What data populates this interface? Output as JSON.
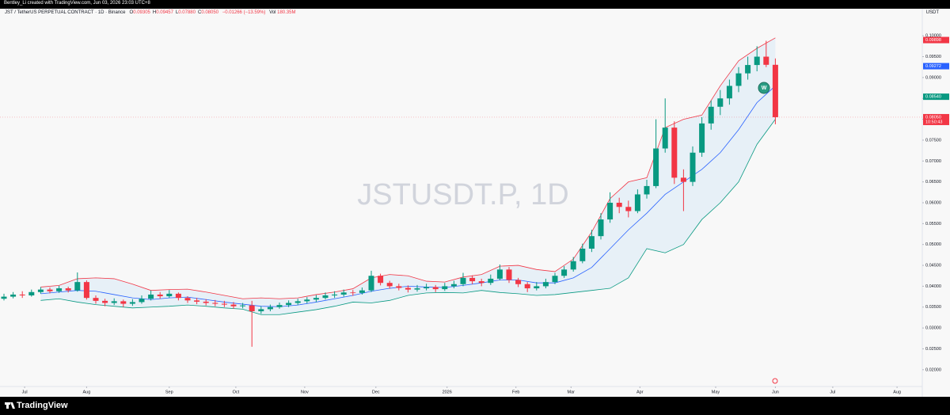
{
  "header": {
    "credit": "Bentley_Li created with TradingView.com, Jun 03, 2026 23:03 UTC+8"
  },
  "footer": {
    "brand": "TradingView"
  },
  "chart_data": {
    "type": "candlestick",
    "watermark": "JSTUSDT.P, 1D",
    "symbol": "JST / TetherUS PERPETUAL CONTRACT · 1D · Binance",
    "ohlc": [
      {
        "key": "O",
        "value": "0.09305"
      },
      {
        "key": "H",
        "value": "0.09457"
      },
      {
        "key": "L",
        "value": "0.07880"
      },
      {
        "key": "C",
        "value": "0.08050"
      }
    ],
    "change": "−0.01266 (−13.59%)",
    "volume_key": "Vol",
    "volume": "180.35M",
    "currency": "USDT",
    "badge": "W",
    "up_color": "#089981",
    "down_color": "#f23645",
    "xlim": [
      0,
      400
    ],
    "xticks": [
      {
        "value": 9,
        "label": "Jul"
      },
      {
        "value": 36,
        "label": "Aug"
      },
      {
        "value": 72,
        "label": "Sep"
      },
      {
        "value": 101,
        "label": "Oct"
      },
      {
        "value": 131,
        "label": "Nov"
      },
      {
        "value": 162,
        "label": "Dec"
      },
      {
        "value": 193,
        "label": "2026"
      },
      {
        "value": 223,
        "label": "Feb"
      },
      {
        "value": 247,
        "label": "Mar"
      },
      {
        "value": 277,
        "label": "Apr"
      },
      {
        "value": 310,
        "label": "May"
      },
      {
        "value": 336,
        "label": "Jun"
      },
      {
        "value": 361,
        "label": "Jul"
      },
      {
        "value": 389,
        "label": "Aug"
      }
    ],
    "ylim": [
      0.0156,
      0.1044
    ],
    "yticks": [
      {
        "value": 0.02,
        "label": "0.02000"
      },
      {
        "value": 0.025,
        "label": "0.02500"
      },
      {
        "value": 0.03,
        "label": "0.03000"
      },
      {
        "value": 0.035,
        "label": "0.03500"
      },
      {
        "value": 0.04,
        "label": "0.04000"
      },
      {
        "value": 0.045,
        "label": "0.04500"
      },
      {
        "value": 0.05,
        "label": "0.05000"
      },
      {
        "value": 0.055,
        "label": "0.05500"
      },
      {
        "value": 0.06,
        "label": "0.06000"
      },
      {
        "value": 0.065,
        "label": "0.06500"
      },
      {
        "value": 0.07,
        "label": "0.07000"
      },
      {
        "value": 0.075,
        "label": "0.07500"
      },
      {
        "value": 0.08,
        "label": "0.08000"
      },
      {
        "value": 0.085,
        "label": "0.08500"
      },
      {
        "value": 0.09,
        "label": "0.09000"
      },
      {
        "value": 0.095,
        "label": "0.09500"
      },
      {
        "value": 0.1,
        "label": "0.10000"
      }
    ],
    "x": [
      0,
      4,
      8,
      12,
      16,
      20,
      24,
      28,
      32,
      36,
      40,
      44,
      48,
      52,
      56,
      60,
      64,
      68,
      72,
      76,
      80,
      84,
      88,
      92,
      96,
      100,
      104,
      108,
      112,
      116,
      120,
      124,
      128,
      132,
      136,
      140,
      144,
      148,
      152,
      156,
      160,
      164,
      168,
      172,
      176,
      180,
      184,
      188,
      192,
      196,
      200,
      204,
      208,
      212,
      216,
      220,
      224,
      228,
      232,
      236,
      240,
      244,
      248,
      252,
      256,
      260,
      264,
      268,
      272,
      276,
      280,
      284,
      288,
      292,
      296,
      300,
      304,
      308,
      312,
      316,
      320,
      324,
      328,
      332,
      336
    ],
    "candles": [
      [
        0.037,
        0.0382,
        0.0366,
        0.0375
      ],
      [
        0.0375,
        0.0386,
        0.0371,
        0.038
      ],
      [
        0.038,
        0.0388,
        0.0372,
        0.0378
      ],
      [
        0.0378,
        0.0392,
        0.0375,
        0.0386
      ],
      [
        0.0386,
        0.0398,
        0.0382,
        0.0392
      ],
      [
        0.0392,
        0.0397,
        0.0383,
        0.0388
      ],
      [
        0.0388,
        0.0401,
        0.0384,
        0.0395
      ],
      [
        0.0395,
        0.0399,
        0.0385,
        0.039
      ],
      [
        0.039,
        0.0433,
        0.0387,
        0.041
      ],
      [
        0.041,
        0.0414,
        0.0368,
        0.0372
      ],
      [
        0.0372,
        0.0378,
        0.0358,
        0.0365
      ],
      [
        0.0365,
        0.037,
        0.0352,
        0.036
      ],
      [
        0.036,
        0.0371,
        0.0355,
        0.0364
      ],
      [
        0.0364,
        0.0368,
        0.035,
        0.0358
      ],
      [
        0.0358,
        0.0369,
        0.0353,
        0.0362
      ],
      [
        0.0362,
        0.0378,
        0.0358,
        0.037
      ],
      [
        0.037,
        0.039,
        0.0366,
        0.038
      ],
      [
        0.038,
        0.0386,
        0.037,
        0.0376
      ],
      [
        0.0376,
        0.0391,
        0.0372,
        0.0382
      ],
      [
        0.0382,
        0.0385,
        0.0366,
        0.0372
      ],
      [
        0.0372,
        0.0376,
        0.036,
        0.0366
      ],
      [
        0.0366,
        0.0372,
        0.0357,
        0.0363
      ],
      [
        0.0363,
        0.0369,
        0.0354,
        0.036
      ],
      [
        0.036,
        0.0367,
        0.0352,
        0.0358
      ],
      [
        0.0358,
        0.0365,
        0.035,
        0.0356
      ],
      [
        0.0356,
        0.0362,
        0.0346,
        0.0352
      ],
      [
        0.0352,
        0.036,
        0.0347,
        0.0354
      ],
      [
        0.0354,
        0.0365,
        0.0255,
        0.034
      ],
      [
        0.034,
        0.0352,
        0.0334,
        0.0345
      ],
      [
        0.0345,
        0.0356,
        0.034,
        0.035
      ],
      [
        0.035,
        0.0361,
        0.0346,
        0.0355
      ],
      [
        0.0355,
        0.0366,
        0.035,
        0.036
      ],
      [
        0.036,
        0.037,
        0.0355,
        0.0364
      ],
      [
        0.0364,
        0.0374,
        0.0359,
        0.0368
      ],
      [
        0.0368,
        0.0379,
        0.0362,
        0.0372
      ],
      [
        0.0372,
        0.0385,
        0.0368,
        0.0378
      ],
      [
        0.0378,
        0.0388,
        0.0372,
        0.038
      ],
      [
        0.038,
        0.0392,
        0.0375,
        0.0385
      ],
      [
        0.0385,
        0.0391,
        0.0377,
        0.0384
      ],
      [
        0.0384,
        0.0397,
        0.038,
        0.039
      ],
      [
        0.039,
        0.0437,
        0.0386,
        0.0425
      ],
      [
        0.0425,
        0.043,
        0.0402,
        0.0408
      ],
      [
        0.0408,
        0.0413,
        0.0394,
        0.04
      ],
      [
        0.04,
        0.0406,
        0.039,
        0.0396
      ],
      [
        0.0396,
        0.0402,
        0.0385,
        0.0392
      ],
      [
        0.0392,
        0.0403,
        0.0387,
        0.0395
      ],
      [
        0.0395,
        0.0406,
        0.039,
        0.0398
      ],
      [
        0.0398,
        0.0403,
        0.0386,
        0.0393
      ],
      [
        0.0393,
        0.0408,
        0.0389,
        0.04
      ],
      [
        0.04,
        0.0413,
        0.0395,
        0.0405
      ],
      [
        0.0405,
        0.0432,
        0.04,
        0.042
      ],
      [
        0.042,
        0.0426,
        0.0405,
        0.0412
      ],
      [
        0.0412,
        0.0418,
        0.04,
        0.0408
      ],
      [
        0.0408,
        0.0428,
        0.0403,
        0.0418
      ],
      [
        0.0418,
        0.0452,
        0.0414,
        0.044
      ],
      [
        0.044,
        0.0446,
        0.0408,
        0.0415
      ],
      [
        0.0415,
        0.042,
        0.0398,
        0.0405
      ],
      [
        0.0405,
        0.041,
        0.0386,
        0.0395
      ],
      [
        0.0395,
        0.041,
        0.039,
        0.04
      ],
      [
        0.04,
        0.0418,
        0.0395,
        0.041
      ],
      [
        0.041,
        0.0432,
        0.0405,
        0.0425
      ],
      [
        0.0425,
        0.0448,
        0.042,
        0.044
      ],
      [
        0.044,
        0.047,
        0.0435,
        0.046
      ],
      [
        0.046,
        0.0502,
        0.0455,
        0.049
      ],
      [
        0.049,
        0.0535,
        0.0482,
        0.052
      ],
      [
        0.052,
        0.0575,
        0.0512,
        0.056
      ],
      [
        0.056,
        0.0625,
        0.0552,
        0.06
      ],
      [
        0.06,
        0.0612,
        0.0575,
        0.059
      ],
      [
        0.059,
        0.0605,
        0.0565,
        0.058
      ],
      [
        0.058,
        0.0632,
        0.0575,
        0.062
      ],
      [
        0.062,
        0.0655,
        0.061,
        0.064
      ],
      [
        0.064,
        0.08,
        0.0635,
        0.073
      ],
      [
        0.073,
        0.085,
        0.072,
        0.078
      ],
      [
        0.078,
        0.0795,
        0.0645,
        0.066
      ],
      [
        0.066,
        0.068,
        0.058,
        0.065
      ],
      [
        0.065,
        0.0735,
        0.064,
        0.072
      ],
      [
        0.072,
        0.0805,
        0.071,
        0.079
      ],
      [
        0.079,
        0.0845,
        0.0775,
        0.083
      ],
      [
        0.083,
        0.087,
        0.081,
        0.085
      ],
      [
        0.085,
        0.0895,
        0.0835,
        0.088
      ],
      [
        0.088,
        0.0925,
        0.0865,
        0.091
      ],
      [
        0.091,
        0.095,
        0.0895,
        0.093
      ],
      [
        0.093,
        0.0975,
        0.0915,
        0.095
      ],
      [
        0.095,
        0.0988,
        0.0925,
        0.09305
      ],
      [
        0.09305,
        0.09457,
        0.0788,
        0.0805
      ]
    ],
    "bollinger": {
      "x": [
        16,
        24,
        32,
        40,
        48,
        56,
        64,
        72,
        80,
        88,
        96,
        104,
        112,
        120,
        128,
        136,
        144,
        152,
        160,
        168,
        176,
        184,
        192,
        200,
        208,
        216,
        224,
        232,
        240,
        248,
        256,
        264,
        272,
        280,
        288,
        296,
        304,
        312,
        320,
        328,
        336
      ],
      "upper": {
        "color": "#f23645",
        "values": [
          0.0398,
          0.0402,
          0.0418,
          0.042,
          0.0418,
          0.0405,
          0.039,
          0.0392,
          0.0393,
          0.0386,
          0.0378,
          0.037,
          0.0372,
          0.037,
          0.0372,
          0.038,
          0.0386,
          0.0394,
          0.042,
          0.0428,
          0.0425,
          0.0412,
          0.041,
          0.0422,
          0.0428,
          0.0448,
          0.045,
          0.044,
          0.0435,
          0.0465,
          0.053,
          0.061,
          0.065,
          0.066,
          0.078,
          0.08,
          0.081,
          0.088,
          0.094,
          0.097,
          0.0995
        ]
      },
      "basis": {
        "color": "#2962ff",
        "values": [
          0.0382,
          0.0386,
          0.039,
          0.0388,
          0.038,
          0.0372,
          0.0368,
          0.0372,
          0.0374,
          0.0368,
          0.0362,
          0.0357,
          0.0352,
          0.0351,
          0.0355,
          0.0362,
          0.037,
          0.0378,
          0.0388,
          0.0395,
          0.04,
          0.0398,
          0.0397,
          0.0402,
          0.0408,
          0.0415,
          0.0415,
          0.0408,
          0.0408,
          0.042,
          0.0445,
          0.049,
          0.0535,
          0.0575,
          0.062,
          0.065,
          0.068,
          0.072,
          0.0775,
          0.084,
          0.088
        ]
      },
      "lower": {
        "color": "#089981",
        "values": [
          0.0366,
          0.037,
          0.0362,
          0.0356,
          0.0352,
          0.0348,
          0.035,
          0.0352,
          0.0355,
          0.0352,
          0.0348,
          0.0345,
          0.0332,
          0.0332,
          0.0338,
          0.0344,
          0.0352,
          0.0362,
          0.036,
          0.0366,
          0.0378,
          0.0384,
          0.0385,
          0.0384,
          0.039,
          0.0385,
          0.0382,
          0.0378,
          0.038,
          0.0385,
          0.039,
          0.0395,
          0.042,
          0.049,
          0.048,
          0.05,
          0.056,
          0.06,
          0.065,
          0.074,
          0.08
        ]
      }
    },
    "price_labels": [
      {
        "value": 0.09898,
        "color": "#f23645"
      },
      {
        "value": 0.09272,
        "color": "#2962ff"
      },
      {
        "value": 0.0854,
        "label": "0.08540",
        "color": "#089981"
      },
      {
        "value": 0.0805,
        "label": "0.08050",
        "color": "#f23645",
        "countdown": "10:50:43"
      }
    ]
  }
}
